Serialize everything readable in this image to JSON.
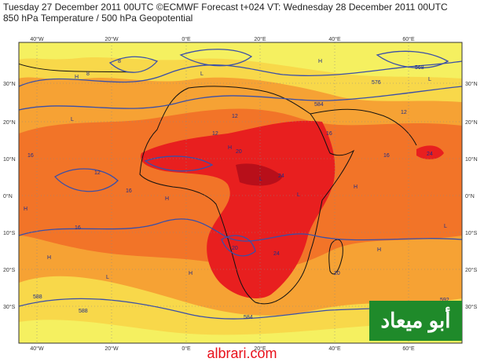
{
  "header": {
    "line1": "Tuesday 27 December 2011 00UTC ©ECMWF Forecast t+024 VT: Wednesday 28 December 2011 00UTC",
    "line2": "850 hPa Temperature / 500 hPa Geopotential"
  },
  "axes": {
    "lon_labels": [
      "40°W",
      "20°W",
      "0°E",
      "20°E",
      "40°E",
      "60°E"
    ],
    "lat_labels": [
      "30°N",
      "20°N",
      "10°N",
      "0°N",
      "10°S",
      "20°S",
      "30°S"
    ]
  },
  "contour_labels": [
    "8",
    "12",
    "16",
    "20",
    "24",
    "16",
    "12",
    "20",
    "24",
    "16",
    "12",
    "8",
    "16",
    "20",
    "12",
    "24",
    "16",
    "568",
    "584",
    "576",
    "588",
    "584",
    "592",
    "588"
  ],
  "pressure_marks": [
    "H",
    "L",
    "H",
    "L",
    "H",
    "L",
    "H",
    "L",
    "H",
    "L",
    "H",
    "H",
    "L",
    "H",
    "L",
    "H"
  ],
  "colors": {
    "ocean_temp_low": "#f8f05a",
    "temp_warm": "#f8a030",
    "temp_hot": "#f06a20",
    "temp_very_hot": "#e81f1f",
    "temp_extreme": "#b80f1a",
    "geopotential_line": "#3a4fa8",
    "coast": "#111111"
  },
  "watermark": {
    "arabic": "أبو ميعاد",
    "site": "albrari.com"
  }
}
